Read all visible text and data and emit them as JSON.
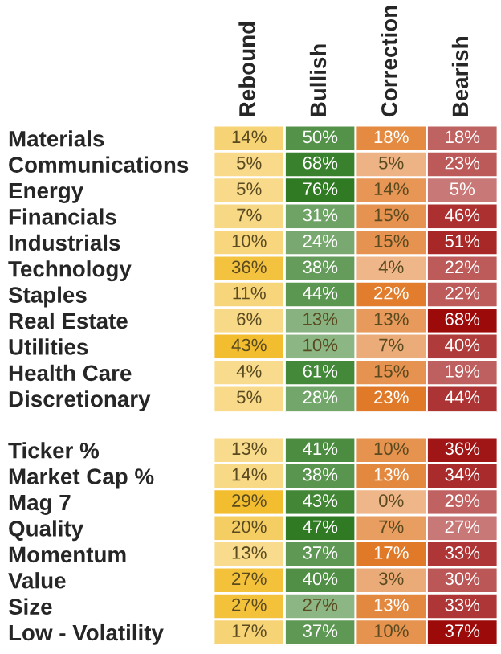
{
  "chart_data": [
    {
      "type": "heatmap",
      "categories": [
        "Rebound",
        "Bullish",
        "Correction",
        "Bearish"
      ],
      "y_categories": [
        "Materials",
        "Communications",
        "Energy",
        "Financials",
        "Industrials",
        "Technology",
        "Staples",
        "Real Estate",
        "Utilities",
        "Health Care",
        "Discretionary"
      ],
      "colors": [
        "#f2bd2e",
        "#2f7a22",
        "#e07a28",
        "#9c0a0a"
      ],
      "cells": [
        [
          14,
          50,
          18,
          18
        ],
        [
          5,
          68,
          5,
          23
        ],
        [
          5,
          76,
          14,
          5
        ],
        [
          7,
          31,
          15,
          46
        ],
        [
          10,
          24,
          15,
          51
        ],
        [
          36,
          38,
          4,
          22
        ],
        [
          11,
          44,
          22,
          22
        ],
        [
          6,
          13,
          13,
          68
        ],
        [
          43,
          10,
          7,
          40
        ],
        [
          4,
          61,
          15,
          19
        ],
        [
          5,
          28,
          23,
          44
        ]
      ],
      "cell_labels": [
        [
          "14%",
          "50%",
          "18%",
          "18%"
        ],
        [
          "5%",
          "68%",
          "5%",
          "23%"
        ],
        [
          "5%",
          "76%",
          "14%",
          "5%"
        ],
        [
          "7%",
          "31%",
          "15%",
          "46%"
        ],
        [
          "10%",
          "24%",
          "15%",
          "51%"
        ],
        [
          "36%",
          "38%",
          "4%",
          "22%"
        ],
        [
          "11%",
          "44%",
          "22%",
          "22%"
        ],
        [
          "6%",
          "13%",
          "13%",
          "68%"
        ],
        [
          "43%",
          "10%",
          "7%",
          "40%"
        ],
        [
          "4%",
          "61%",
          "15%",
          "19%"
        ],
        [
          "5%",
          "28%",
          "23%",
          "44%"
        ]
      ]
    },
    {
      "type": "heatmap",
      "categories": [
        null,
        null,
        null,
        null
      ],
      "y_categories": [
        "Ticker %",
        "Market Cap %",
        "Mag 7",
        "Quality",
        "Momentum",
        "Value",
        "Size",
        "Low - Volatility"
      ],
      "colors": [
        "#f2bd2e",
        "#2f7a22",
        "#e07a28",
        "#9c0a0a"
      ],
      "tick_labels": "y",
      "cells": [
        [
          13,
          41,
          10,
          36
        ],
        [
          14,
          38,
          13,
          34
        ],
        [
          29,
          43,
          0,
          29
        ],
        [
          20,
          47,
          7,
          27
        ],
        [
          13,
          37,
          17,
          33
        ],
        [
          27,
          40,
          3,
          30
        ],
        [
          27,
          27,
          13,
          33
        ],
        [
          17,
          37,
          10,
          37
        ]
      ],
      "cell_labels": [
        [
          "13%",
          "41%",
          "10%",
          "36%"
        ],
        [
          "14%",
          "38%",
          "13%",
          "34%"
        ],
        [
          "29%",
          "43%",
          "0%",
          "29%"
        ],
        [
          "20%",
          "47%",
          "7%",
          "27%"
        ],
        [
          "13%",
          "37%",
          "17%",
          "33%"
        ],
        [
          "27%",
          "40%",
          "3%",
          "30%"
        ],
        [
          "27%",
          "27%",
          "13%",
          "33%"
        ],
        [
          "17%",
          "37%",
          "10%",
          "37%"
        ]
      ]
    }
  ]
}
